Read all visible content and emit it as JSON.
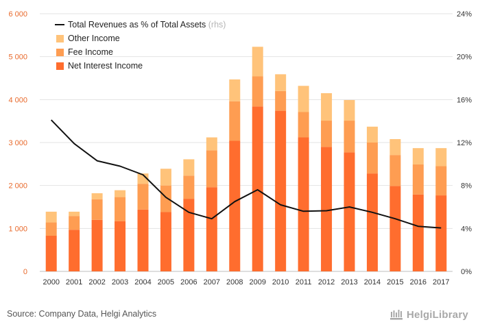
{
  "chart_data": {
    "type": "bar",
    "stacked": true,
    "categories": [
      "2000",
      "2001",
      "2002",
      "2003",
      "2004",
      "2005",
      "2006",
      "2007",
      "2008",
      "2009",
      "2010",
      "2011",
      "2012",
      "2013",
      "2014",
      "2015",
      "2016",
      "2017"
    ],
    "series": [
      {
        "name": "Net Interest Income",
        "color": "#ff6d2e",
        "values": [
          830,
          970,
          1200,
          1170,
          1440,
          1380,
          1690,
          1960,
          3040,
          3840,
          3740,
          3120,
          2900,
          2770,
          2280,
          1990,
          1790,
          1770
        ]
      },
      {
        "name": "Fee Income",
        "color": "#fe9d52",
        "values": [
          310,
          320,
          480,
          560,
          600,
          620,
          540,
          860,
          920,
          700,
          460,
          590,
          610,
          740,
          720,
          720,
          700,
          680
        ]
      },
      {
        "name": "Other Income",
        "color": "#ffc37a",
        "values": [
          250,
          100,
          140,
          160,
          240,
          390,
          380,
          300,
          510,
          690,
          390,
          610,
          640,
          480,
          370,
          370,
          380,
          420
        ]
      }
    ],
    "line_series": {
      "name": "Total Revenues as % of Total Assets",
      "suffix": "(rhs)",
      "color": "#111111",
      "values": [
        14.1,
        11.9,
        10.3,
        9.8,
        9.0,
        6.9,
        5.5,
        4.9,
        6.5,
        7.6,
        6.2,
        5.6,
        5.65,
        6.0,
        5.5,
        4.9,
        4.2,
        4.05
      ]
    },
    "y_left": {
      "ylim": [
        0,
        6000
      ],
      "ticks": [
        "0",
        "1 000",
        "2 000",
        "3 000",
        "4 000",
        "5 000",
        "6 000"
      ]
    },
    "y_right": {
      "ylim": [
        0,
        24
      ],
      "ticks": [
        "0%",
        "4%",
        "8%",
        "12%",
        "16%",
        "20%",
        "24%"
      ]
    },
    "grid": "horizontal",
    "legend_position": "top-left"
  },
  "footer": {
    "source": "Source: Company Data, Helgi Analytics",
    "brand": "HelgiLibrary"
  },
  "colors": {
    "left_axis_text": "#e8682a",
    "grid": "#e3e3e3"
  }
}
